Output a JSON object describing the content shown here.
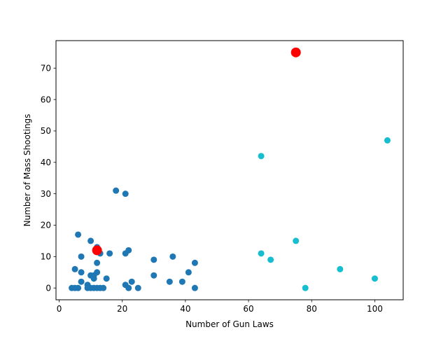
{
  "chart_data": {
    "type": "scatter",
    "xlabel": "Number of Gun Laws",
    "ylabel": "Number of Mass Shootings",
    "xlim": [
      -1,
      109
    ],
    "ylim": [
      -3.75,
      78.75
    ],
    "xticks": [
      0,
      20,
      40,
      60,
      80,
      100
    ],
    "yticks": [
      0,
      10,
      20,
      30,
      40,
      50,
      60,
      70
    ],
    "grid": false,
    "series": [
      {
        "color": "#1f77b4",
        "points": [
          [
            4,
            0
          ],
          [
            5,
            0
          ],
          [
            6,
            0
          ],
          [
            5,
            6
          ],
          [
            6,
            17
          ],
          [
            7,
            10
          ],
          [
            7,
            5
          ],
          [
            7,
            2
          ],
          [
            9,
            0
          ],
          [
            9,
            1
          ],
          [
            10,
            0
          ],
          [
            10,
            4
          ],
          [
            10,
            15
          ],
          [
            11,
            3
          ],
          [
            11,
            4
          ],
          [
            11,
            0
          ],
          [
            12,
            0
          ],
          [
            12,
            5
          ],
          [
            12,
            8
          ],
          [
            12,
            13
          ],
          [
            13,
            11
          ],
          [
            13,
            0
          ],
          [
            14,
            0
          ],
          [
            15,
            3
          ],
          [
            16,
            11
          ],
          [
            18,
            31
          ],
          [
            21,
            30
          ],
          [
            21,
            11
          ],
          [
            21,
            1
          ],
          [
            22,
            12
          ],
          [
            22,
            0
          ],
          [
            23,
            2
          ],
          [
            25,
            0
          ],
          [
            30,
            9
          ],
          [
            30,
            4
          ],
          [
            35,
            2
          ],
          [
            36,
            10
          ],
          [
            39,
            2
          ],
          [
            41,
            5
          ],
          [
            43,
            8
          ],
          [
            43,
            0
          ]
        ]
      },
      {
        "color": "#17becf",
        "points": [
          [
            64,
            42
          ],
          [
            64,
            11
          ],
          [
            67,
            9
          ],
          [
            75,
            15
          ],
          [
            78,
            0
          ],
          [
            89,
            6
          ],
          [
            100,
            3
          ],
          [
            104,
            47
          ]
        ]
      },
      {
        "color": "#ff0000",
        "large": true,
        "points": [
          [
            12,
            12
          ],
          [
            75,
            75
          ]
        ]
      }
    ]
  }
}
